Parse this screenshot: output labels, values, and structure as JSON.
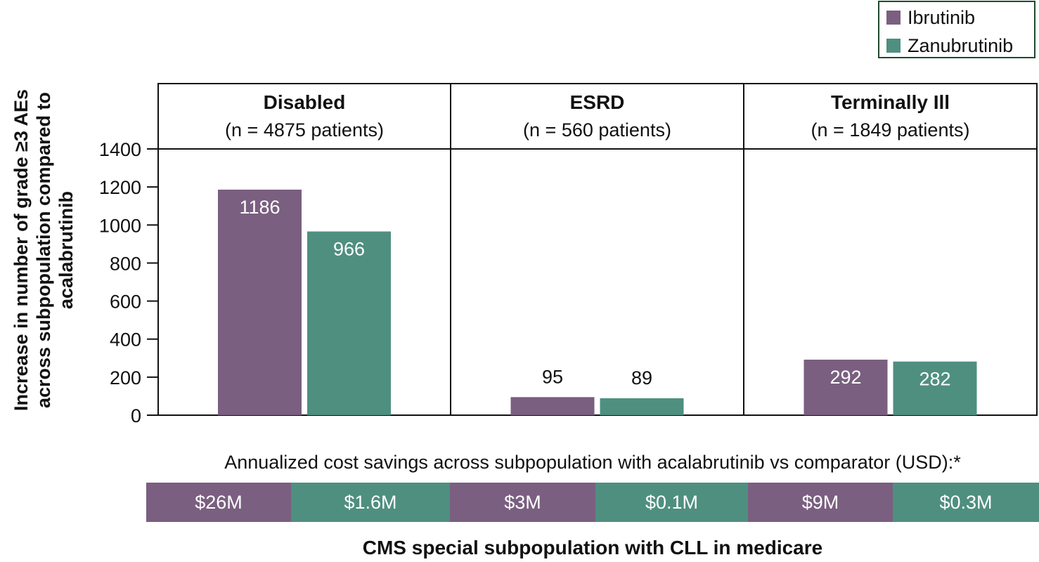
{
  "colors": {
    "ibrutinib": "#7a5f80",
    "zanubrutinib": "#4f8f80",
    "frame": "#111111"
  },
  "legend": [
    {
      "label": "Ibrutinib",
      "color_key": "ibrutinib"
    },
    {
      "label": "Zanubrutinib",
      "color_key": "zanubrutinib"
    }
  ],
  "chart_data": {
    "type": "bar",
    "title": "",
    "ylabel_lines": [
      "Increase in number of grade ≥3 AEs",
      "across subpopulation compared to",
      "acalabrutinib"
    ],
    "xlabel": "CMS special subpopulation with CLL in medicare",
    "ylim": [
      0,
      1400
    ],
    "yticks": [
      0,
      200,
      400,
      600,
      800,
      1000,
      1200,
      1400
    ],
    "grid": false,
    "legend_position": "top-right",
    "panels": [
      {
        "title": "Disabled",
        "subtitle": "(n = 4875 patients)"
      },
      {
        "title": "ESRD",
        "subtitle": "(n = 560 patients)"
      },
      {
        "title": "Terminally Ill",
        "subtitle": "(n = 1849 patients)"
      }
    ],
    "categories": [
      "Disabled",
      "ESRD",
      "Terminally Ill"
    ],
    "series": [
      {
        "name": "Ibrutinib",
        "values": [
          1186,
          95,
          292
        ],
        "labels": [
          "1186",
          "95",
          "292"
        ]
      },
      {
        "name": "Zanubrutinib",
        "values": [
          966,
          89,
          282
        ],
        "labels": [
          "966",
          "89",
          "282"
        ]
      }
    ],
    "cost_savings": {
      "caption": "Annualized cost savings across subpopulation with acalabrutinib vs comparator (USD):*",
      "cells": [
        {
          "label": "$26M",
          "series": "ibrutinib"
        },
        {
          "label": "$1.6M",
          "series": "zanubrutinib"
        },
        {
          "label": "$3M",
          "series": "ibrutinib"
        },
        {
          "label": "$0.1M",
          "series": "zanubrutinib"
        },
        {
          "label": "$9M",
          "series": "ibrutinib"
        },
        {
          "label": "$0.3M",
          "series": "zanubrutinib"
        }
      ]
    }
  }
}
